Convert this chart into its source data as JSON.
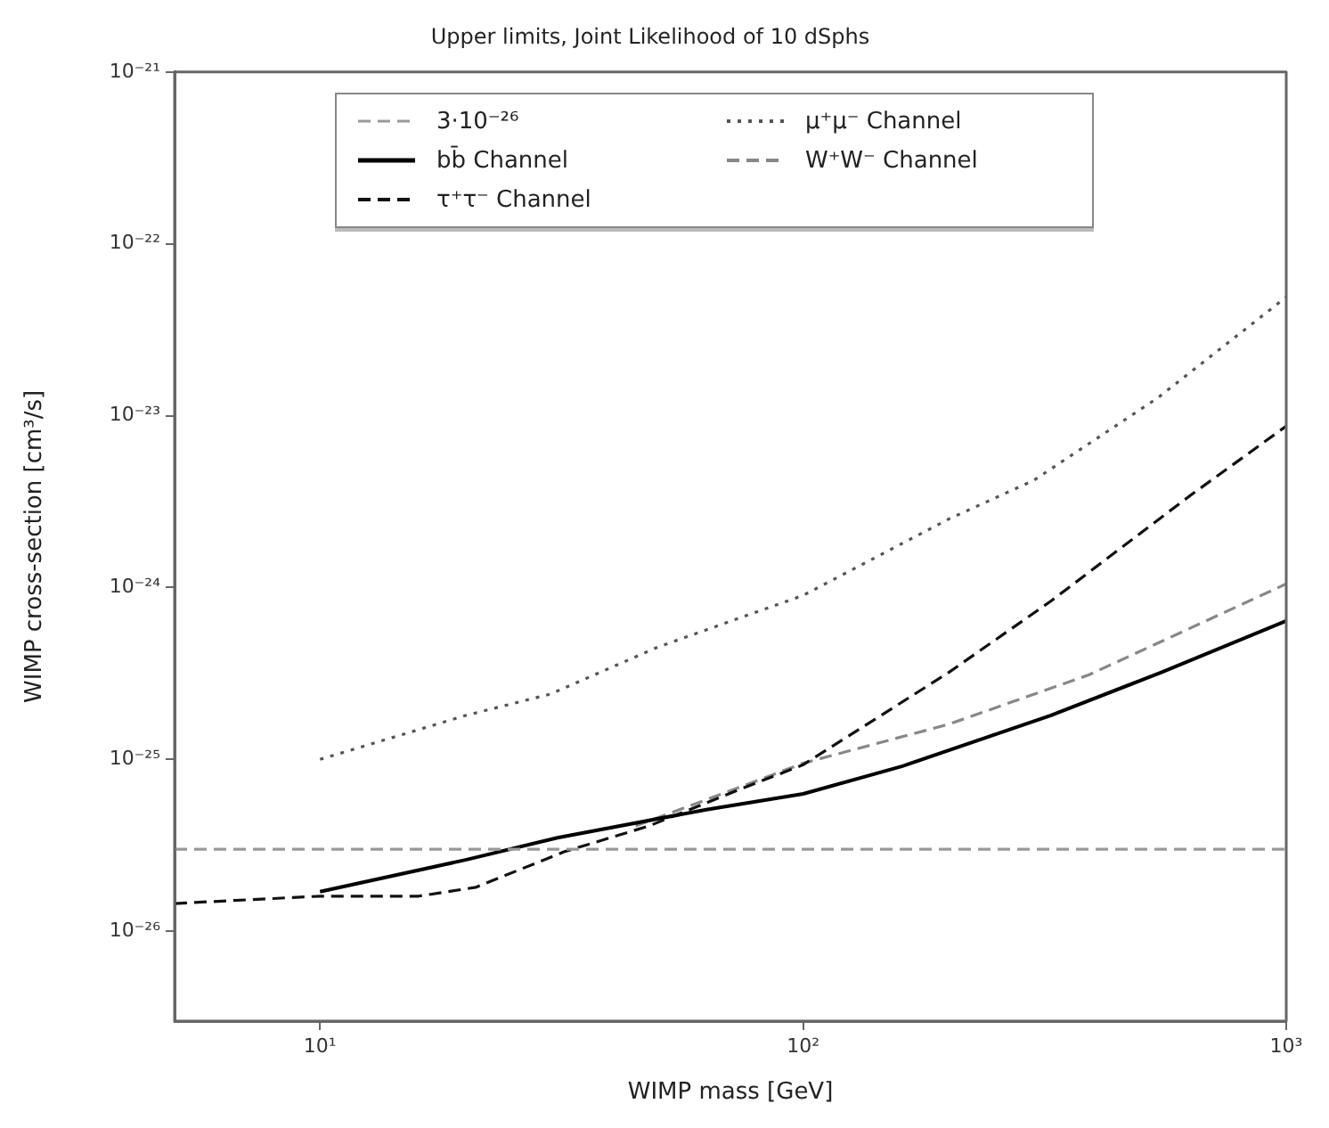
{
  "chart_data": {
    "type": "line",
    "title": "Upper limits, Joint Likelihood of 10 dSphs",
    "xlabel": "WIMP mass [GeV]",
    "ylabel": "WIMP cross-section [cm³/s]",
    "log": "xy",
    "grid": false,
    "legend": "top",
    "marker": "none",
    "xlim": [
      5,
      1000
    ],
    "ylim": [
      3e-27,
      1e-21
    ],
    "xticks": [
      {
        "value": 10,
        "label": "10¹"
      },
      {
        "value": 100,
        "label": "10²"
      },
      {
        "value": 1000,
        "label": "10³"
      }
    ],
    "yticks": [
      {
        "value": 1e-26,
        "label": "10⁻²⁶"
      },
      {
        "value": 1e-25,
        "label": "10⁻²⁵"
      },
      {
        "value": 1e-24,
        "label": "10⁻²⁴"
      },
      {
        "value": 1e-23,
        "label": "10⁻²³"
      },
      {
        "value": 1e-22,
        "label": "10⁻²²"
      },
      {
        "value": 1e-21,
        "label": "10⁻²¹"
      }
    ],
    "ref_lines": [
      {
        "axis": "y",
        "value": 3e-26,
        "label": "3·10⁻²⁶",
        "color": "#999999",
        "line_style": "dashed"
      }
    ],
    "series": [
      {
        "name": "bb̄ Channel",
        "color": "#000000",
        "line_style": "solid",
        "x": [
          10,
          20,
          31,
          63,
          100,
          160,
          325,
          550,
          1000
        ],
        "values": [
          1.7e-26,
          2.6e-26,
          3.5e-26,
          5.1e-26,
          6.3e-26,
          9.1e-26,
          1.8e-25,
          3.2e-25,
          6.4e-25
        ]
      },
      {
        "name": "τ⁺τ⁻ Channel",
        "color": "#111111",
        "line_style": "dashed",
        "x": [
          5,
          10,
          16,
          21,
          32,
          48,
          73,
          100,
          200,
          325,
          630,
          1000
        ],
        "values": [
          1.45e-26,
          1.6e-26,
          1.6e-26,
          1.8e-26,
          2.9e-26,
          4.1e-26,
          6.6e-26,
          9.3e-26,
          3.2e-25,
          8.3e-25,
          3.4e-24,
          8.7e-24
        ]
      },
      {
        "name": "μ⁺μ⁻ Channel",
        "color": "#555555",
        "line_style": "dotted",
        "x": [
          10,
          20,
          30,
          50,
          100,
          200,
          300,
          540,
          1000
        ],
        "values": [
          1e-25,
          1.8e-25,
          2.4e-25,
          4.5e-25,
          9e-25,
          2.5e-24,
          4.2e-24,
          1.26e-23,
          4.9e-23
        ]
      },
      {
        "name": "W⁺W⁻ Channel",
        "color": "#888888",
        "line_style": "dashed",
        "x": [
          45,
          70,
          100,
          200,
          390,
          1000
        ],
        "values": [
          4.1e-26,
          6.5e-26,
          9.5e-26,
          1.6e-25,
          3.1e-25,
          1.05e-24
        ]
      }
    ]
  }
}
